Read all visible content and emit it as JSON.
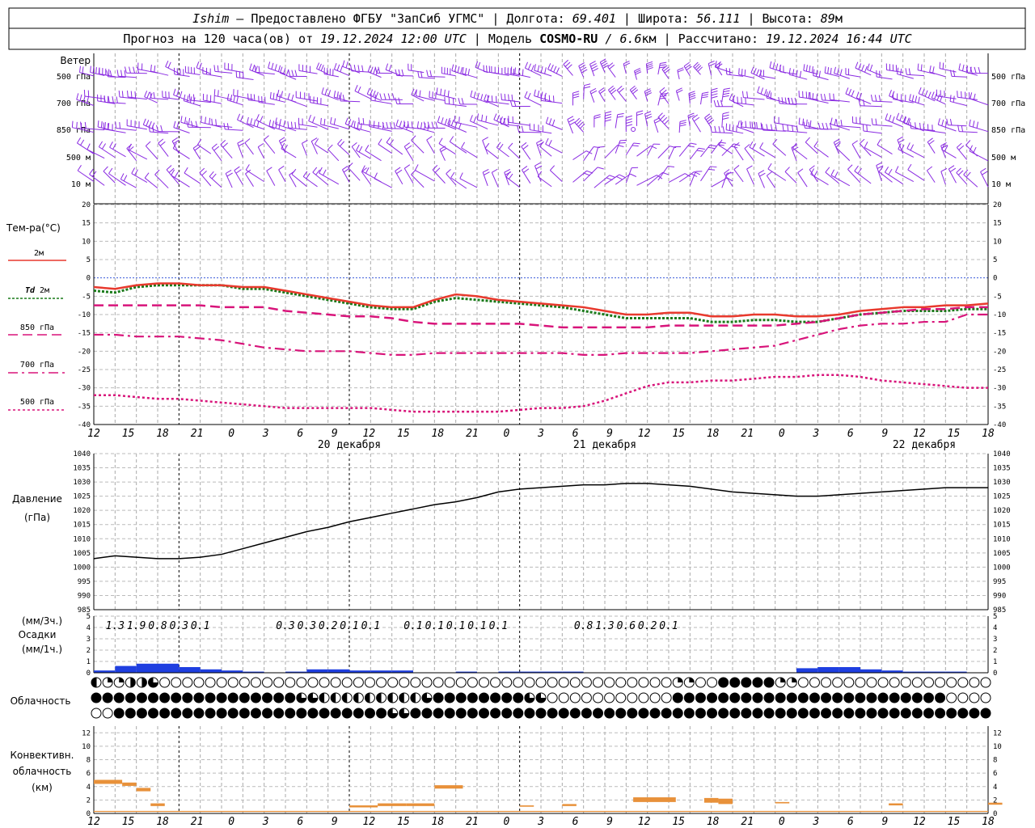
{
  "header": {
    "line1": {
      "station": "Ishim",
      "provider": " — Предоставлено ФГБУ \"ЗапСиб УГМС\" | Долгота: ",
      "lon": "69.401",
      "lat_label": " | Широта: ",
      "lat": "56.111",
      "alt_label": " | Высота: ",
      "alt": "89",
      "alt_unit": "м"
    },
    "line2": {
      "prefix": "Прогноз на 120 часа(ов) от ",
      "run": "19.12.2024 12:00 UTC",
      "model_label": " | Модель ",
      "model": "COSMO-RU",
      "res_sep": " / ",
      "res": "6.6",
      "res_unit": "км",
      "calc_label": " | Рассчитано: ",
      "calc": "19.12.2024 16:44 UTC"
    }
  },
  "wind_panel": {
    "title": "Ветер",
    "levels": [
      "500 гПа",
      "700 гПа",
      "850 гПа",
      "500 м",
      "10  м"
    ],
    "color": "#8a2be2"
  },
  "time_axis": {
    "hour_labels": [
      "12",
      "15",
      "18",
      "21",
      "0",
      "3",
      "6",
      "9",
      "12",
      "15",
      "18",
      "21",
      "0",
      "3",
      "6",
      "9",
      "12",
      "15",
      "18",
      "21",
      "0",
      "3",
      "6",
      "9",
      "12",
      "15",
      "18"
    ],
    "dates": [
      "20 декабря",
      "21 декабря",
      "22 декабря"
    ],
    "midnight_hours": [
      12,
      36,
      60
    ]
  },
  "temp_legend": {
    "title": "Тем-ра(°C)",
    "items": [
      {
        "label": "2м",
        "color": "#e8392d",
        "dash": ""
      },
      {
        "label_prefix": "Td",
        "label": " 2м",
        "color": "#1a7a1a",
        "dash": "3,2"
      },
      {
        "label": "850 гПа",
        "color": "#d8147a",
        "dash": "12,6"
      },
      {
        "label": "700 гПа",
        "color": "#d8147a",
        "dash": "12,5,3,5"
      },
      {
        "label": "500 гПа",
        "color": "#d8147a",
        "dash": "3,3"
      }
    ]
  },
  "pressure_legend": {
    "title": "Давление",
    "unit": "(гПа)"
  },
  "precip_legend": {
    "unit3": "(мм/3ч.)",
    "title": "Осадки",
    "unit1": "(мм/1ч.)"
  },
  "cloud_legend": {
    "title": "Облачность"
  },
  "conv_legend": {
    "title1": "Конвективн.",
    "title2": "облачность",
    "unit": "(км)"
  },
  "chart_data": [
    {
      "type": "line",
      "title": "Тем-ра(°C)",
      "ylim": [
        -40,
        20
      ],
      "x_hours": [
        0,
        3,
        6,
        9,
        12,
        15,
        18,
        21,
        24,
        27,
        30,
        33,
        36,
        39,
        42,
        45,
        48,
        51,
        54,
        57,
        60,
        63,
        66,
        69,
        72,
        75,
        78,
        81,
        84,
        87,
        90,
        93,
        96,
        99,
        102,
        105,
        108,
        111,
        114,
        117,
        120,
        123,
        126
      ],
      "series": [
        {
          "name": "2м",
          "values": [
            -2.5,
            -3,
            -2,
            -1.5,
            -1.5,
            -2,
            -2,
            -2.5,
            -2.5,
            -3.5,
            -4.5,
            -5.5,
            -6.5,
            -7.5,
            -8,
            -8,
            -6,
            -4.5,
            -5,
            -6,
            -6.5,
            -7,
            -7.5,
            -8,
            -9,
            -10,
            -10,
            -9.5,
            -9.5,
            -10.5,
            -10.5,
            -10,
            -10,
            -10.5,
            -10.5,
            -10,
            -9,
            -8.5,
            -8,
            -8,
            -7.5,
            -7.5,
            -7
          ]
        },
        {
          "name": "Td 2м",
          "values": [
            -3.5,
            -4,
            -2.5,
            -2,
            -2,
            -2,
            -2,
            -3,
            -3,
            -4,
            -5,
            -6,
            -7,
            -8,
            -8.5,
            -8.5,
            -6.5,
            -5.5,
            -6,
            -6.5,
            -7,
            -7.5,
            -8,
            -9,
            -10,
            -11,
            -11,
            -11,
            -11,
            -12,
            -12,
            -11.5,
            -11.5,
            -12,
            -12,
            -11,
            -10,
            -9.5,
            -9,
            -9,
            -9,
            -8.5,
            -8.5
          ]
        },
        {
          "name": "850 гПа",
          "values": [
            -7.5,
            -7.5,
            -7.5,
            -7.5,
            -7.5,
            -7.5,
            -8,
            -8,
            -8,
            -9,
            -9.5,
            -10,
            -10.5,
            -10.5,
            -11,
            -12,
            -12.5,
            -12.5,
            -12.5,
            -12.5,
            -12.5,
            -13,
            -13.5,
            -13.5,
            -13.5,
            -13.5,
            -13.5,
            -13,
            -13,
            -13,
            -13,
            -13,
            -13,
            -12.5,
            -12,
            -11,
            -10,
            -9.5,
            -9,
            -8.5,
            -8.5,
            -8,
            -8
          ]
        },
        {
          "name": "700 гПа",
          "values": [
            -15.5,
            -15.5,
            -16,
            -16,
            -16,
            -16.5,
            -17,
            -18,
            -19,
            -19.5,
            -20,
            -20,
            -20,
            -20.5,
            -21,
            -21,
            -20.5,
            -20.5,
            -20.5,
            -20.5,
            -20.5,
            -20.5,
            -20.5,
            -21,
            -21,
            -20.5,
            -20.5,
            -20.5,
            -20.5,
            -20,
            -19.5,
            -19,
            -18.5,
            -17,
            -15.5,
            -14,
            -13,
            -12.5,
            -12.5,
            -12,
            -12,
            -10,
            -10
          ]
        },
        {
          "name": "500 гПа",
          "values": [
            -32,
            -32,
            -32.5,
            -33,
            -33,
            -33.5,
            -34,
            -34.5,
            -35,
            -35.5,
            -35.5,
            -35.5,
            -35.5,
            -35.5,
            -36,
            -36.5,
            -36.5,
            -36.5,
            -36.5,
            -36.5,
            -36,
            -35.5,
            -35.5,
            -35,
            -33.5,
            -31.5,
            -29.5,
            -28.5,
            -28.5,
            -28,
            -28,
            -27.5,
            -27,
            -27,
            -26.5,
            -26.5,
            -27,
            -28,
            -28.5,
            -29,
            -29.5,
            -30,
            -30
          ]
        }
      ]
    },
    {
      "type": "line",
      "title": "Давление",
      "ylabel": "(гПа)",
      "ylim": [
        985,
        1040
      ],
      "x_hours": [
        0,
        3,
        6,
        9,
        12,
        15,
        18,
        21,
        24,
        27,
        30,
        33,
        36,
        39,
        42,
        45,
        48,
        51,
        54,
        57,
        60,
        63,
        66,
        69,
        72,
        75,
        78,
        81,
        84,
        87,
        90,
        93,
        96,
        99,
        102,
        105,
        108,
        111,
        114,
        117,
        120,
        123,
        126
      ],
      "series": [
        {
          "name": "Давление",
          "values": [
            1003,
            1004,
            1003.5,
            1003,
            1003,
            1003.5,
            1004.5,
            1006.5,
            1008.5,
            1010.5,
            1012.5,
            1014,
            1016,
            1017.5,
            1019,
            1020.5,
            1022,
            1023,
            1024.5,
            1026.5,
            1027.5,
            1028,
            1028.5,
            1029,
            1029,
            1029.5,
            1029.5,
            1029,
            1028.5,
            1027.5,
            1026.5,
            1026,
            1025.5,
            1025,
            1025,
            1025.5,
            1026,
            1026.5,
            1027,
            1027.5,
            1028,
            1028,
            1028
          ]
        }
      ]
    },
    {
      "type": "bar",
      "title": "Осадки",
      "ylim": [
        0,
        5
      ],
      "hourly_x": [
        0,
        3,
        6,
        9,
        12,
        15,
        18,
        21,
        24,
        27,
        30,
        33,
        36,
        39,
        42,
        45,
        48,
        51,
        54,
        57,
        60,
        63,
        66,
        69,
        72,
        75,
        78,
        81,
        84,
        87,
        90,
        93,
        96,
        99,
        102,
        105,
        108,
        111,
        114,
        117,
        120
      ],
      "hourly_values": [
        0.2,
        0.6,
        0.8,
        0.8,
        0.5,
        0.3,
        0.2,
        0.1,
        0,
        0.1,
        0.3,
        0.3,
        0.2,
        0.2,
        0.2,
        0,
        0,
        0.1,
        0,
        0.1,
        0.1,
        0.1,
        0.1,
        0,
        0,
        0,
        0,
        0,
        0,
        0,
        0,
        0,
        0,
        0.4,
        0.5,
        0.5,
        0.3,
        0.2,
        0.1,
        0.1,
        0.1
      ],
      "labels_x": [
        3,
        6,
        9,
        12,
        15,
        27,
        30,
        33,
        36,
        39,
        45,
        48,
        51,
        54,
        57,
        69,
        72,
        75,
        78,
        81
      ],
      "labels": [
        "1.3",
        "1.9",
        "0.8",
        "0.3",
        "0.1",
        "0.3",
        "0.3",
        "0.2",
        "0.1",
        "0.1",
        "0.1",
        "0.1",
        "0.1",
        "0.1",
        "0.1",
        "0.8",
        "1.3",
        "0.6",
        "0.2",
        "0.1"
      ]
    },
    {
      "type": "bar",
      "title": "Конвективн. облачность",
      "ylabel": "(км)",
      "ylim": [
        0,
        13
      ],
      "segments": [
        {
          "x0": 0,
          "x1": 2,
          "bot": 4.4,
          "top": 5.0
        },
        {
          "x0": 2,
          "x1": 3,
          "bot": 4.1,
          "top": 4.6
        },
        {
          "x0": 3,
          "x1": 4,
          "bot": 3.3,
          "top": 3.8
        },
        {
          "x0": 4,
          "x1": 5,
          "bot": 1.1,
          "top": 1.5
        },
        {
          "x0": 18,
          "x1": 20,
          "bot": 0.9,
          "top": 1.2
        },
        {
          "x0": 20,
          "x1": 22,
          "bot": 1.1,
          "top": 1.5
        },
        {
          "x0": 22,
          "x1": 24,
          "bot": 1.1,
          "top": 1.5
        },
        {
          "x0": 24,
          "x1": 26,
          "bot": 3.7,
          "top": 4.2
        },
        {
          "x0": 30,
          "x1": 31,
          "bot": 1.0,
          "top": 1.2
        },
        {
          "x0": 33,
          "x1": 34,
          "bot": 1.1,
          "top": 1.4
        },
        {
          "x0": 38,
          "x1": 41,
          "bot": 1.7,
          "top": 2.4
        },
        {
          "x0": 43,
          "x1": 44,
          "bot": 1.6,
          "top": 2.3
        },
        {
          "x0": 44,
          "x1": 45,
          "bot": 1.4,
          "top": 2.2
        },
        {
          "x0": 48,
          "x1": 49,
          "bot": 1.5,
          "top": 1.7
        },
        {
          "x0": 56,
          "x1": 57,
          "bot": 1.2,
          "top": 1.5
        },
        {
          "x0": 63,
          "x1": 64,
          "bot": 1.3,
          "top": 1.6
        }
      ],
      "baseline": 0.3
    }
  ],
  "clouds": {
    "rows": [
      "PEGGGNNNNQQEEEEEEEEEEEEEEEEEEEEEEEEEEEEEEEEEEEEEEEEEEEEEEEEEEEEEEEEEEEEEEEEEEEEEEEEEEEEEEEEEEEEEEEEEEEGGGGGEEEEEFFFFFFFFFGGGGEEEEEEEEEEEEEEEEEEEEEEEEEEEEEEEEEEEF",
      "FFFFFFFFFFFFFFFFFFFFFFFFFFFFFFFFFFFFQQQQQHHHHHHHHHHHHHHHHHQQFFFFFFFFFFFFFFFFFQQQQQEEEEEEEEEEEEEEEEEEEEEEFFFFFFFFFFFFFFFFFFFFFFFFFFFFFFFFFFFFFFFFFFFFFFFFFEEEEEEEEEE",
      "EEEFFFFFFFFFFFFFFFFFFFFFFFFFFFFFFFFFFFFFFFFFFFFFFFFFQQQQQFFFFFFFFFFFFFFFFFFFFFFFFFFFFFFFFFFFFFFFFFFFFFFFFFFFFFFFFFFFFFFFFFFFFFFFFFFFFFFFFFFFFFFFFFFFFFFFFFFFFFFFFF"
    ]
  }
}
